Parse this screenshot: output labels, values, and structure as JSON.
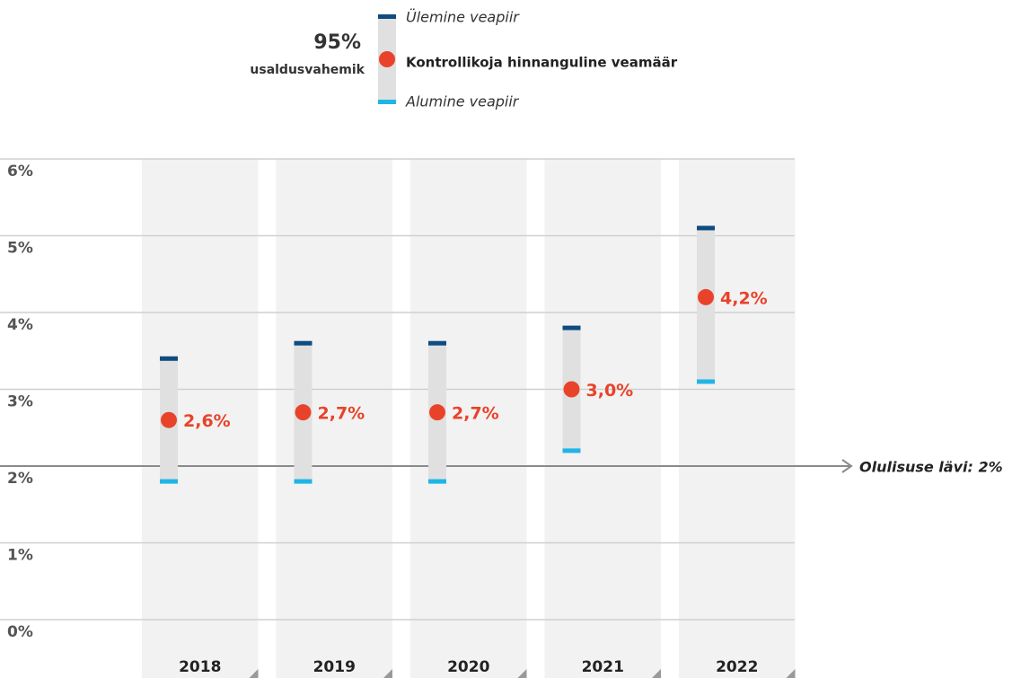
{
  "chart_data": {
    "type": "errorbar",
    "legend_title": "95%",
    "legend_subtitle": "usaldusvahemik",
    "categories": [
      "2018",
      "2019",
      "2020",
      "2021",
      "2022"
    ],
    "series": [
      {
        "name": "Kontrollikoja hinnanguline veamäär",
        "color": "#e8432a",
        "values": [
          2.6,
          2.7,
          2.7,
          3.0,
          4.2
        ],
        "value_labels": [
          "2,6%",
          "2,7%",
          "2,7%",
          "3,0%",
          "4,2%"
        ]
      },
      {
        "name": "Ülemine veapiir",
        "color": "#0f4c81",
        "values": [
          3.4,
          3.6,
          3.6,
          3.8,
          5.1
        ]
      },
      {
        "name": "Alumine veapiir",
        "color": "#1fb5e6",
        "values": [
          1.8,
          1.8,
          1.8,
          2.2,
          3.1
        ]
      }
    ],
    "ylim": [
      0,
      6
    ],
    "yticks": [
      {
        "value": 0,
        "label": "0%"
      },
      {
        "value": 1,
        "label": "1%"
      },
      {
        "value": 2,
        "label": "2%"
      },
      {
        "value": 3,
        "label": "3%"
      },
      {
        "value": 4,
        "label": "4%"
      },
      {
        "value": 5,
        "label": "5%"
      },
      {
        "value": 6,
        "label": "6%"
      }
    ],
    "grid": true,
    "threshold": {
      "value": 2,
      "label": "Olulisuse lävi: 2%"
    }
  }
}
